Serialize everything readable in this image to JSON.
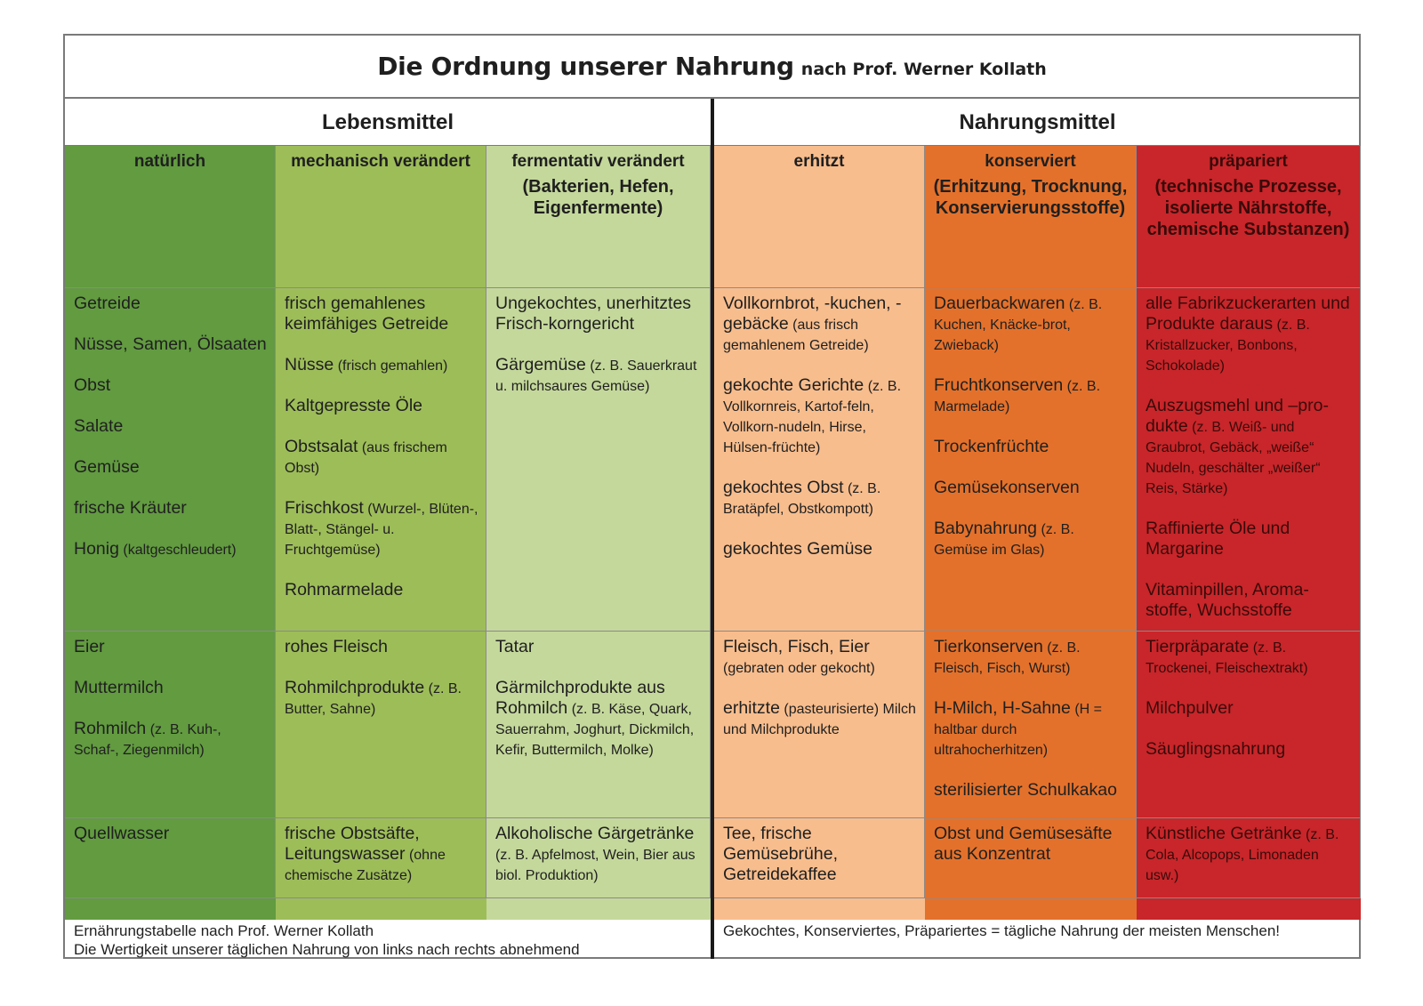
{
  "title": {
    "main": "Die Ordnung unserer Nahrung",
    "sub": "nach Prof. Werner Kollath"
  },
  "groups": [
    "Lebensmittel",
    "Nahrungsmittel"
  ],
  "columns": [
    {
      "h1": "natürlich",
      "h2": ""
    },
    {
      "h1": "mechanisch verändert",
      "h2": ""
    },
    {
      "h1": "fermentativ verändert",
      "h2": "(Bakterien, Hefen, Eigenfermente)"
    },
    {
      "h1": "erhitzt",
      "h2": ""
    },
    {
      "h1": "konserviert",
      "h2": "(Erhitzung, Trocknung, Konservierungsstoffe)"
    },
    {
      "h1": "präpariert",
      "h2": "(technische Prozesse, isolierte Nährstoffe, chemische Substanzen)"
    }
  ],
  "rows": {
    "plant": [
      [
        "Getreide",
        "Nüsse, Samen, Ölsaaten",
        "Obst",
        "Salate",
        "Gemüse",
        "frische Kräuter",
        "Honig (kaltgeschleudert)"
      ],
      [
        "frisch gemahlenes keimfähiges Getreide",
        "Nüsse (frisch gemahlen)",
        "Kaltgepresste Öle",
        "Obstsalat (aus frischem Obst)",
        "Frischkost (Wurzel-, Blüten-, Blatt-, Stängel- u. Fruchtgemüse)",
        "Rohmarmelade"
      ],
      [
        "Ungekochtes, unerhitztes Frisch-korngericht",
        "Gärgemüse (z. B. Sauerkraut u. milchsaures Gemüse)"
      ],
      [
        "Vollkornbrot, -kuchen, -gebäcke (aus frisch gemahlenem Getreide)",
        "gekochte Gerichte (z. B. Vollkornreis, Kartof-feln, Vollkorn-nudeln, Hirse, Hülsen-früchte)",
        "gekochtes Obst (z. B. Bratäpfel, Obstkompott)",
        "gekochtes Gemüse"
      ],
      [
        "Dauerbackwaren (z. B. Kuchen, Knäcke-brot, Zwieback)",
        "Fruchtkonserven (z. B. Marmelade)",
        "Trockenfrüchte",
        "Gemüsekonserven",
        "Babynahrung (z. B. Gemüse im Glas)"
      ],
      [
        "alle Fabrikzuckerarten und Produkte daraus (z. B. Kristallzucker, Bonbons, Schokolade)",
        "Auszugsmehl und –pro-dukte (z. B. Weiß- und Graubrot, Gebäck, „weiße“ Nudeln, geschälter „weißer“ Reis, Stärke)",
        "Raffinierte Öle und Margarine",
        "Vitaminpillen, Aroma-stoffe, Wuchsstoffe"
      ]
    ],
    "animal": [
      [
        "Eier",
        "Muttermilch",
        "Rohmilch (z. B. Kuh-, Schaf-, Ziegenmilch)"
      ],
      [
        "rohes Fleisch",
        "Rohmilchprodukte (z. B. Butter, Sahne)"
      ],
      [
        "Tatar",
        "Gärmilchprodukte aus Rohmilch (z. B. Käse, Quark, Sauerrahm, Joghurt, Dickmilch, Kefir, Buttermilch, Molke)"
      ],
      [
        "Fleisch, Fisch, Eier (gebraten oder gekocht)",
        "erhitzte (pasteurisierte) Milch und Milchprodukte"
      ],
      [
        "Tierkonserven (z. B. Fleisch, Fisch, Wurst)",
        "H-Milch, H-Sahne (H = haltbar durch ultrahocherhitzen)",
        "sterilisierter Schulkakao"
      ],
      [
        "Tierpräparate (z. B. Trockenei, Fleischextrakt)",
        "Milchpulver",
        "Säuglingsnahrung"
      ]
    ],
    "drinks": [
      [
        "Quellwasser"
      ],
      [
        "frische Obstsäfte, Leitungswasser (ohne chemische Zusätze)"
      ],
      [
        "Alkoholische Gärgetränke (z. B. Apfelmost, Wein, Bier aus biol. Produktion)"
      ],
      [
        "Tee, frische Gemüsebrühe, Getreidekaffee"
      ],
      [
        "Obst und Gemüsesäfte aus Konzentrat"
      ],
      [
        "Künstliche Getränke (z. B. Cola, Alcopops, Limonaden usw.)"
      ]
    ]
  },
  "footer": {
    "left_1": "Ernährungstabelle nach Prof. Werner Kollath",
    "left_2": "Die Wertigkeit unserer täglichen Nahrung von links nach rechts abnehmend",
    "right": "Gekochtes, Konserviertes, Präpariertes = tägliche Nahrung der meisten Menschen!"
  },
  "colors": {
    "natuerlich": "#629b40",
    "mechanisch": "#9dbd59",
    "fermentativ": "#c4d89b",
    "erhitzt": "#f8bd8d",
    "konserviert": "#e4712b",
    "praepariert": "#c8262a"
  }
}
